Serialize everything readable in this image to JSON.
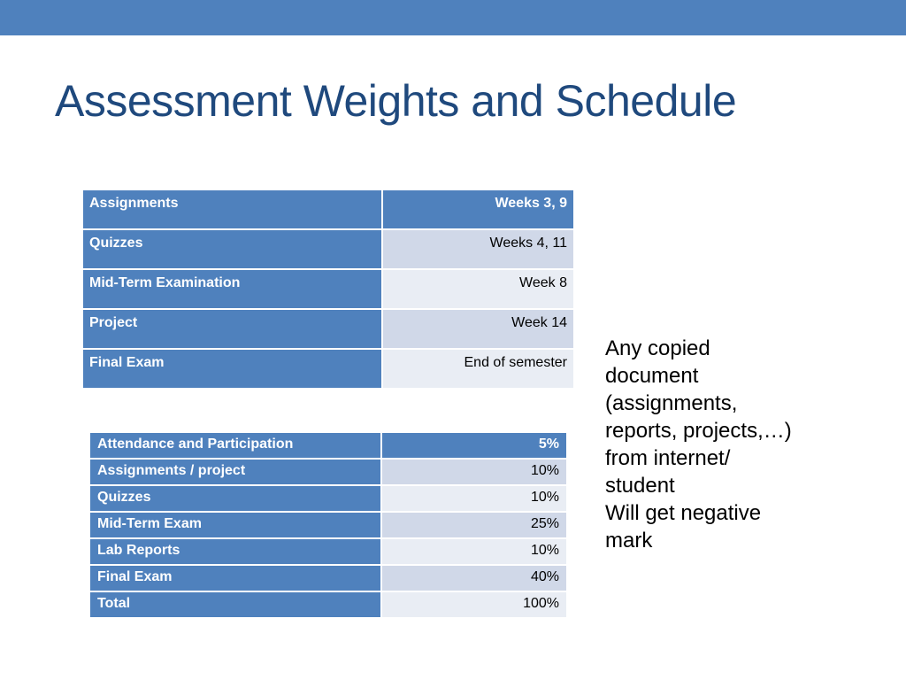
{
  "slide": {
    "title": "Assessment Weights and Schedule",
    "accent_color": "#4f81bd",
    "title_color": "#1f497d"
  },
  "schedule": {
    "rows": [
      {
        "item": "Assignments",
        "when": "Weeks 3, 9"
      },
      {
        "item": "Quizzes",
        "when": "Weeks 4, 11"
      },
      {
        "item": "Mid-Term Examination",
        "when": "Week  8"
      },
      {
        "item": "Project",
        "when": "Week 14"
      },
      {
        "item": "Final Exam",
        "when": "End of semester"
      }
    ]
  },
  "weights": {
    "rows": [
      {
        "item": "Attendance and Participation",
        "weight": "5%"
      },
      {
        "item": "Assignments / project",
        "weight": "10%"
      },
      {
        "item": "Quizzes",
        "weight": "10%"
      },
      {
        "item": "Mid-Term Exam",
        "weight": "25%"
      },
      {
        "item": "Lab Reports",
        "weight": "10%"
      },
      {
        "item": "Final Exam",
        "weight": "40%"
      },
      {
        "item": "Total",
        "weight": "100%"
      }
    ]
  },
  "note": {
    "lines": [
      "Any copied",
      "document",
      "(assignments,",
      "reports, projects,…)",
      "from internet/",
      "student",
      "Will get negative",
      "mark"
    ]
  }
}
